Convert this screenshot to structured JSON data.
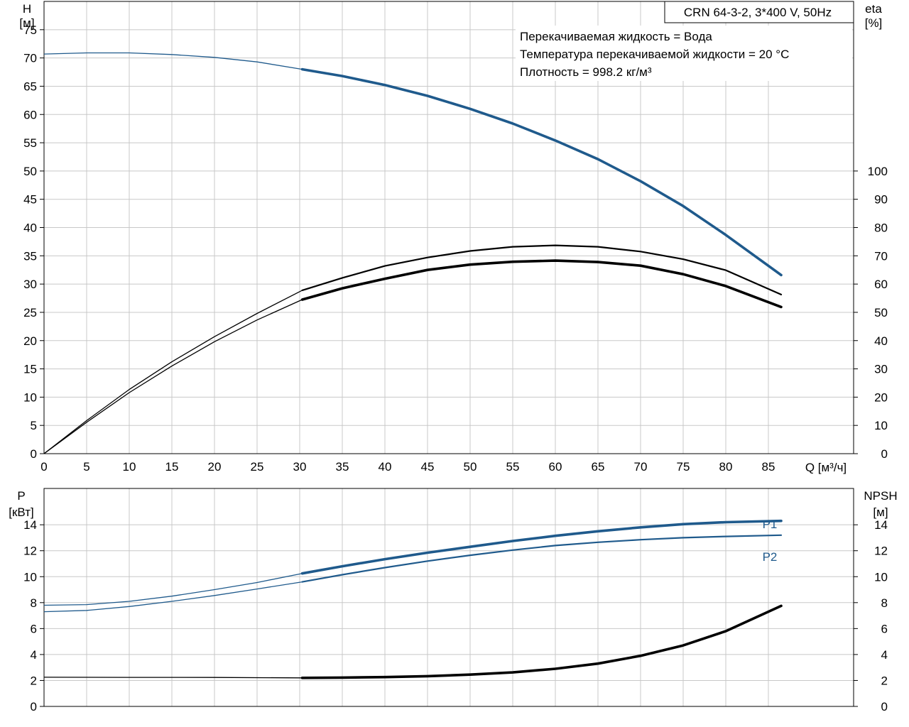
{
  "header": {
    "model": "CRN 64-3-2, 3*400 V, 50Hz",
    "info_lines": [
      "Перекачиваемая жидкость = Вода",
      "Температура перекачиваемой жидкости = 20 °C",
      "Плотность = 998.2 кг/м³"
    ]
  },
  "colors": {
    "blue": "#1f5a8c",
    "black": "#000000",
    "grid": "#c8c8c8"
  },
  "chart_data": [
    {
      "type": "line",
      "x_axis": {
        "label": "Q [м³/ч]",
        "range": [
          0,
          95
        ],
        "ticks": [
          0,
          5,
          10,
          15,
          20,
          25,
          30,
          35,
          40,
          45,
          50,
          55,
          60,
          65,
          70,
          75,
          80,
          85
        ]
      },
      "y_left": {
        "label_top": "H",
        "label_unit": "[м]",
        "range": [
          0,
          80
        ],
        "ticks": [
          0,
          5,
          10,
          15,
          20,
          25,
          30,
          35,
          40,
          45,
          50,
          55,
          60,
          65,
          70,
          75
        ]
      },
      "y_right": {
        "label_top": "eta",
        "label_unit": "[%]",
        "range": [
          0,
          160
        ],
        "ticks": [
          0,
          10,
          20,
          30,
          40,
          50,
          60,
          70,
          80,
          90,
          100
        ]
      },
      "grid": true,
      "series": [
        {
          "axis": "left",
          "color": "blue",
          "op_start": 30.3,
          "x": [
            0,
            5,
            10,
            15,
            20,
            25,
            30.3,
            35,
            40,
            45,
            50,
            55,
            60,
            65,
            70,
            75,
            80,
            86.5
          ],
          "y": [
            70.7,
            70.9,
            70.9,
            70.6,
            70.1,
            69.3,
            68.0,
            66.8,
            65.2,
            63.3,
            61.0,
            58.4,
            55.4,
            52.1,
            48.2,
            43.8,
            38.7,
            31.6
          ]
        },
        {
          "axis": "right",
          "color": "black",
          "op_start": 30.3,
          "x": [
            0,
            5,
            10,
            15,
            20,
            25,
            30.3,
            35,
            40,
            45,
            50,
            55,
            60,
            65,
            70,
            75,
            80,
            86.5
          ],
          "y": [
            0,
            11.7,
            22.7,
            32.5,
            41.4,
            49.6,
            57.8,
            62.2,
            66.4,
            69.4,
            71.7,
            73.2,
            73.7,
            73.2,
            71.5,
            68.8,
            64.9,
            56.3
          ]
        },
        {
          "axis": "right",
          "color": "black",
          "op_start": 30.3,
          "x": [
            0,
            5,
            10,
            15,
            20,
            25,
            30.3,
            35,
            40,
            45,
            50,
            55,
            60,
            65,
            70,
            75,
            80,
            86.5
          ],
          "y": [
            0,
            11.1,
            21.6,
            31.0,
            39.6,
            47.3,
            54.5,
            58.5,
            61.9,
            65.0,
            66.9,
            67.9,
            68.3,
            67.8,
            66.5,
            63.5,
            59.3,
            51.9
          ]
        }
      ]
    },
    {
      "type": "line",
      "x_axis": {
        "range": [
          0,
          95
        ],
        "ticks": [
          0,
          5,
          10,
          15,
          20,
          25,
          30,
          35,
          40,
          45,
          50,
          55,
          60,
          65,
          70,
          75,
          80,
          85
        ]
      },
      "y_left": {
        "label_top": "P",
        "label_unit": "[кВт]",
        "range": [
          0,
          16.8
        ],
        "ticks": [
          0,
          2,
          4,
          6,
          8,
          10,
          12,
          14
        ]
      },
      "y_right": {
        "label_top": "NPSH",
        "label_unit": "[м]",
        "range": [
          0,
          16.8
        ],
        "ticks": [
          0,
          2,
          4,
          6,
          8,
          10,
          12,
          14
        ]
      },
      "grid": true,
      "series": [
        {
          "name": "P1",
          "axis": "left",
          "color": "blue",
          "op_start": 30.3,
          "x": [
            0,
            5,
            10,
            15,
            20,
            25,
            30.3,
            35,
            40,
            45,
            50,
            55,
            60,
            65,
            70,
            75,
            80,
            86.5
          ],
          "y": [
            7.8,
            7.85,
            8.1,
            8.5,
            9.0,
            9.55,
            10.25,
            10.8,
            11.35,
            11.85,
            12.3,
            12.75,
            13.15,
            13.5,
            13.8,
            14.05,
            14.2,
            14.3
          ]
        },
        {
          "name": "P2",
          "axis": "left",
          "color": "blue",
          "op_start": 30.3,
          "x": [
            0,
            5,
            10,
            15,
            20,
            25,
            30.3,
            35,
            40,
            45,
            50,
            55,
            60,
            65,
            70,
            75,
            80,
            86.5
          ],
          "y": [
            7.3,
            7.4,
            7.7,
            8.1,
            8.55,
            9.05,
            9.6,
            10.15,
            10.7,
            11.2,
            11.65,
            12.05,
            12.4,
            12.65,
            12.85,
            13.0,
            13.1,
            13.2
          ]
        },
        {
          "axis": "right",
          "color": "black",
          "op_start": 30.3,
          "x": [
            0,
            10,
            20,
            30.3,
            35,
            40,
            45,
            50,
            55,
            60,
            65,
            70,
            75,
            80,
            86.5
          ],
          "y": [
            2.25,
            2.24,
            2.23,
            2.2,
            2.22,
            2.26,
            2.33,
            2.45,
            2.62,
            2.9,
            3.3,
            3.9,
            4.7,
            5.8,
            7.75
          ]
        }
      ]
    }
  ]
}
